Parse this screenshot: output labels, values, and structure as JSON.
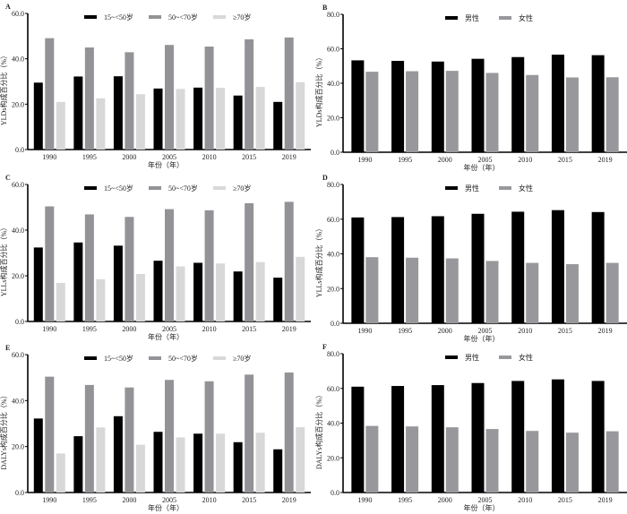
{
  "figure": {
    "colors": {
      "age_15_50": "#000000",
      "age_50_70": "#939397",
      "age_70_plus": "#d8d8d8",
      "male": "#000000",
      "female": "#98989c",
      "axis": "#000000"
    }
  },
  "chart_data": [
    {
      "panel": "A",
      "type": "bar",
      "categories": [
        "1990",
        "1995",
        "2000",
        "2005",
        "2010",
        "2015",
        "2019"
      ],
      "series": [
        {
          "name": "15~<50岁",
          "color_key": "age_15_50",
          "values": [
            29.5,
            32.2,
            32.3,
            26.9,
            27.3,
            23.8,
            21.0
          ]
        },
        {
          "name": "50~<70岁",
          "color_key": "age_50_70",
          "values": [
            49.1,
            45.0,
            42.9,
            46.1,
            45.4,
            48.6,
            49.4
          ]
        },
        {
          "name": "≥70岁",
          "color_key": "age_70_plus",
          "values": [
            21.0,
            22.6,
            24.4,
            26.7,
            27.2,
            27.6,
            29.7
          ]
        }
      ],
      "xlabel": "年份（年）",
      "ylabel": "YLDs构成百分比（%）",
      "ylim": [
        0,
        60
      ],
      "yticks": [
        "0.0",
        "20.0",
        "40.0",
        "60.0"
      ],
      "legend": "top",
      "grid": false
    },
    {
      "panel": "B",
      "type": "bar",
      "categories": [
        "1990",
        "1995",
        "2000",
        "2005",
        "2010",
        "2015",
        "2019"
      ],
      "series": [
        {
          "name": "男性",
          "color_key": "male",
          "values": [
            53.3,
            53.0,
            52.6,
            54.2,
            55.2,
            56.6,
            56.3
          ]
        },
        {
          "name": "女性",
          "color_key": "female",
          "values": [
            46.7,
            47.0,
            47.2,
            46.0,
            44.8,
            43.4,
            43.5
          ]
        }
      ],
      "xlabel": "年份（年）",
      "ylabel": "YLDs构成百分比（%）",
      "ylim": [
        0,
        80
      ],
      "yticks": [
        "0.0",
        "20.0",
        "40.0",
        "60.0",
        "80.0"
      ],
      "legend": "top",
      "grid": false
    },
    {
      "panel": "C",
      "type": "bar",
      "categories": [
        "1990",
        "1995",
        "2000",
        "2005",
        "2010",
        "2015",
        "2019"
      ],
      "series": [
        {
          "name": "15~<50岁",
          "color_key": "age_15_50",
          "values": [
            32.4,
            34.6,
            33.2,
            26.6,
            25.7,
            21.9,
            19.2
          ]
        },
        {
          "name": "50~<70岁",
          "color_key": "age_50_70",
          "values": [
            50.4,
            46.9,
            45.8,
            49.2,
            48.7,
            51.8,
            52.4
          ]
        },
        {
          "name": "≥70岁",
          "color_key": "age_70_plus",
          "values": [
            16.9,
            18.5,
            20.8,
            24.1,
            25.4,
            26.0,
            28.3
          ]
        }
      ],
      "xlabel": "年份（年）",
      "ylabel": "YLLs构成百分比（%）",
      "ylim": [
        0,
        60
      ],
      "yticks": [
        "0.0",
        "20.0",
        "40.0",
        "60.0"
      ],
      "legend": "top",
      "grid": false
    },
    {
      "panel": "D",
      "type": "bar",
      "categories": [
        "1990",
        "1995",
        "2000",
        "2005",
        "2010",
        "2015",
        "2019"
      ],
      "series": [
        {
          "name": "男性",
          "color_key": "male",
          "values": [
            61.0,
            61.2,
            61.7,
            63.1,
            64.3,
            65.2,
            64.1
          ]
        },
        {
          "name": "女性",
          "color_key": "female",
          "values": [
            38.1,
            37.8,
            37.4,
            35.9,
            34.8,
            34.1,
            34.8
          ]
        }
      ],
      "xlabel": "年份（年）",
      "ylabel": "YLLs构成百分比（%）",
      "ylim": [
        0,
        80
      ],
      "yticks": [
        "0.0",
        "20.0",
        "40.0",
        "60.0",
        "80.0"
      ],
      "legend": "top",
      "grid": false
    },
    {
      "panel": "E",
      "type": "bar",
      "categories": [
        "1990",
        "1995",
        "2000",
        "2005",
        "2010",
        "2015",
        "2019"
      ],
      "series": [
        {
          "name": "15~<50岁",
          "color_key": "age_15_50",
          "values": [
            32.2,
            24.5,
            33.2,
            26.4,
            25.6,
            21.9,
            18.8
          ]
        },
        {
          "name": "50~<70岁",
          "color_key": "age_50_70",
          "values": [
            50.4,
            46.8,
            45.7,
            49.0,
            48.4,
            51.3,
            52.2
          ]
        },
        {
          "name": "≥70岁",
          "color_key": "age_70_plus",
          "values": [
            17.0,
            28.3,
            20.8,
            24.0,
            25.6,
            26.0,
            28.4
          ]
        }
      ],
      "xlabel": "年份（年）",
      "ylabel": "DALYs构成百分比（%）",
      "ylim": [
        0,
        60
      ],
      "yticks": [
        "0.0",
        "20.0",
        "40.0",
        "60.0"
      ],
      "legend": "top",
      "grid": false
    },
    {
      "panel": "F",
      "type": "bar",
      "categories": [
        "1990",
        "1995",
        "2000",
        "2005",
        "2010",
        "2015",
        "2019"
      ],
      "series": [
        {
          "name": "男性",
          "color_key": "male",
          "values": [
            61.0,
            61.4,
            61.9,
            63.1,
            64.3,
            65.2,
            64.3
          ]
        },
        {
          "name": "女性",
          "color_key": "female",
          "values": [
            38.4,
            38.1,
            37.6,
            36.6,
            35.5,
            34.5,
            35.3
          ]
        }
      ],
      "xlabel": "年份（年）",
      "ylabel": "DALYs构成百分比（%）",
      "ylim": [
        0,
        80
      ],
      "yticks": [
        "0.0",
        "20.0",
        "40.0",
        "60.0",
        "80.0"
      ],
      "legend": "top",
      "grid": false
    }
  ]
}
